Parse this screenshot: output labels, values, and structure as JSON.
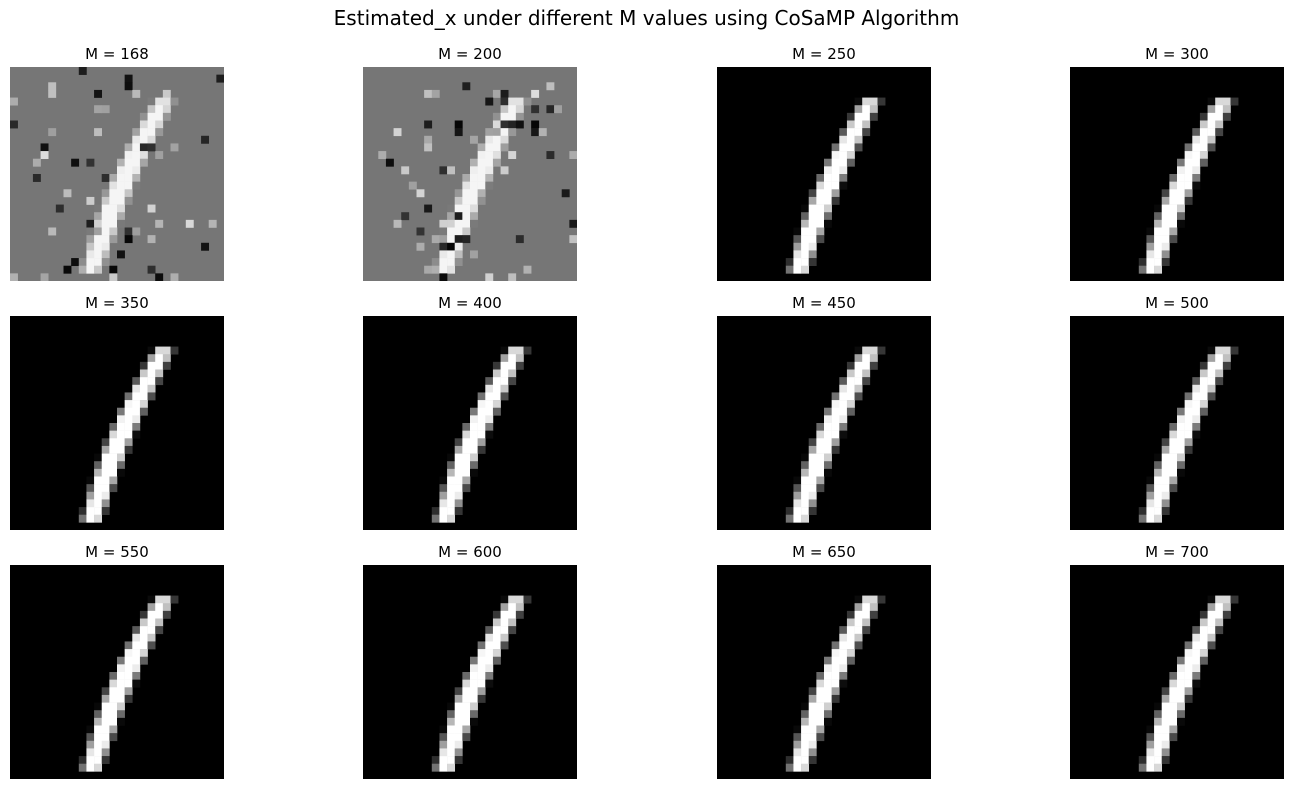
{
  "figure": {
    "title": "Estimated_x under different M values using CoSaMP Algorithm"
  },
  "chart_data": {
    "type": "heatmap",
    "colormap": "gray",
    "grid": false,
    "axes_visible": false,
    "image_size": [
      28,
      28
    ],
    "grid_layout": [
      3,
      4
    ],
    "panels": [
      {
        "title": "M = 168",
        "M": 168,
        "reconstruction": "noisy"
      },
      {
        "title": "M = 200",
        "M": 200,
        "reconstruction": "noisy"
      },
      {
        "title": "M = 250",
        "M": 250,
        "reconstruction": "clean"
      },
      {
        "title": "M = 300",
        "M": 300,
        "reconstruction": "clean"
      },
      {
        "title": "M = 350",
        "M": 350,
        "reconstruction": "clean"
      },
      {
        "title": "M = 400",
        "M": 400,
        "reconstruction": "clean"
      },
      {
        "title": "M = 450",
        "M": 450,
        "reconstruction": "clean"
      },
      {
        "title": "M = 500",
        "M": 500,
        "reconstruction": "clean"
      },
      {
        "title": "M = 550",
        "M": 550,
        "reconstruction": "clean"
      },
      {
        "title": "M = 600",
        "M": 600,
        "reconstruction": "clean"
      },
      {
        "title": "M = 650",
        "M": 650,
        "reconstruction": "clean"
      },
      {
        "title": "M = 700",
        "M": 700,
        "reconstruction": "clean"
      }
    ]
  }
}
